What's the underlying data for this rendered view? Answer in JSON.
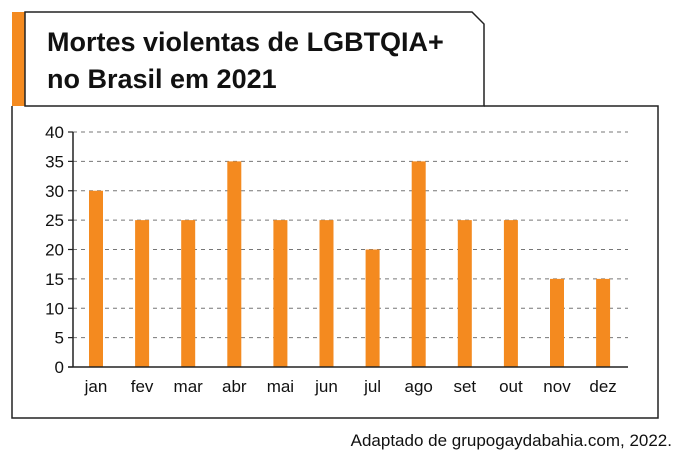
{
  "chart_data": {
    "type": "bar",
    "title_line1": "Mortes violentas de LGBTQIA+",
    "title_line2": "no Brasil em 2021",
    "categories": [
      "jan",
      "fev",
      "mar",
      "abr",
      "mai",
      "jun",
      "jul",
      "ago",
      "set",
      "out",
      "nov",
      "dez"
    ],
    "values": [
      30,
      25,
      25,
      35,
      25,
      25,
      20,
      35,
      25,
      25,
      15,
      15
    ],
    "yticks": [
      "0",
      "5",
      "10",
      "15",
      "20",
      "25",
      "30",
      "35",
      "40"
    ],
    "ylim": [
      0,
      40
    ],
    "grid": true,
    "source": "Adaptado de grupogaydabahia.com, 2022.",
    "colors": {
      "bar": "#f48a1f",
      "accent": "#f48a1f",
      "grid": "#777777",
      "frame": "#222222"
    }
  }
}
